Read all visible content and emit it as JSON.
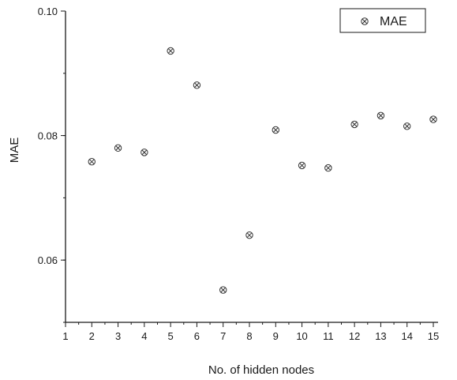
{
  "chart_data": {
    "type": "scatter",
    "xlabel": "No. of hidden nodes",
    "ylabel": "MAE",
    "xlim": [
      1,
      15
    ],
    "ylim": [
      0.05,
      0.1
    ],
    "x_ticks": [
      "1",
      "2",
      "3",
      "4",
      "5",
      "6",
      "7",
      "8",
      "9",
      "10",
      "11",
      "12",
      "13",
      "14",
      "15"
    ],
    "y_tick_labels": [
      "0.06",
      "0.08",
      "0.10"
    ],
    "y_tick_values": [
      0.06,
      0.08,
      0.1
    ],
    "grid": false,
    "legend": "top-right",
    "series": [
      {
        "name": "MAE",
        "marker": "circle-x",
        "x": [
          2,
          3,
          4,
          5,
          6,
          7,
          8,
          9,
          10,
          11,
          12,
          13,
          14,
          15
        ],
        "y": [
          0.0758,
          0.078,
          0.0773,
          0.0936,
          0.0881,
          0.0552,
          0.064,
          0.0809,
          0.0752,
          0.0748,
          0.0818,
          0.0832,
          0.0815,
          0.0826
        ]
      }
    ]
  },
  "colors": {
    "axis": "#1a1a1a",
    "marker": "#333333"
  }
}
